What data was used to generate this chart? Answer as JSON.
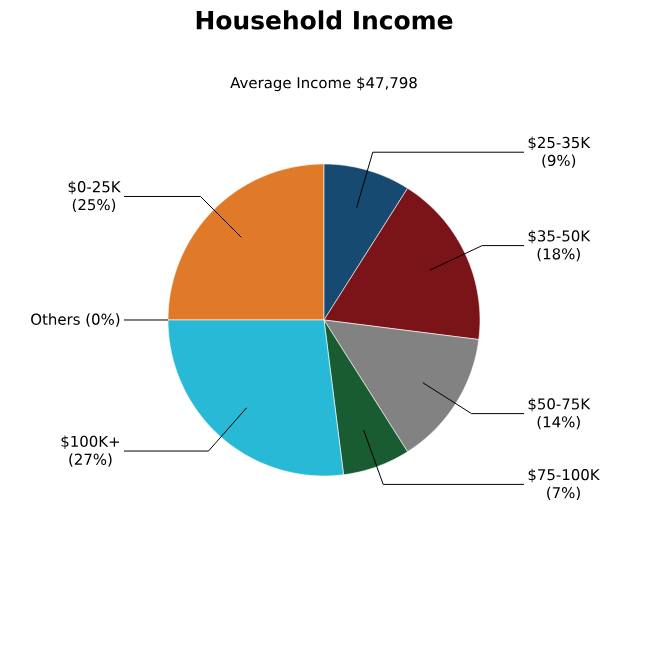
{
  "chart_data": {
    "type": "pie",
    "title": "Household Income",
    "subtitle": "Average Income  $47,798",
    "categories": [
      "$0-25K",
      "$25-35K",
      "$35-50K",
      "$50-75K",
      "$75-100K",
      "$100K+",
      "Others"
    ],
    "values": [
      25,
      9,
      18,
      14,
      7,
      27,
      0
    ],
    "value_labels": [
      "(25%)",
      "(9%)",
      "(18%)",
      "(14%)",
      "(7%)",
      "(27%)",
      "(0%)"
    ],
    "colors": [
      "#e07a28",
      "#174a70",
      "#7b1418",
      "#828282",
      "#195c32",
      "#28b9d7",
      "#9a9a9a"
    ]
  }
}
